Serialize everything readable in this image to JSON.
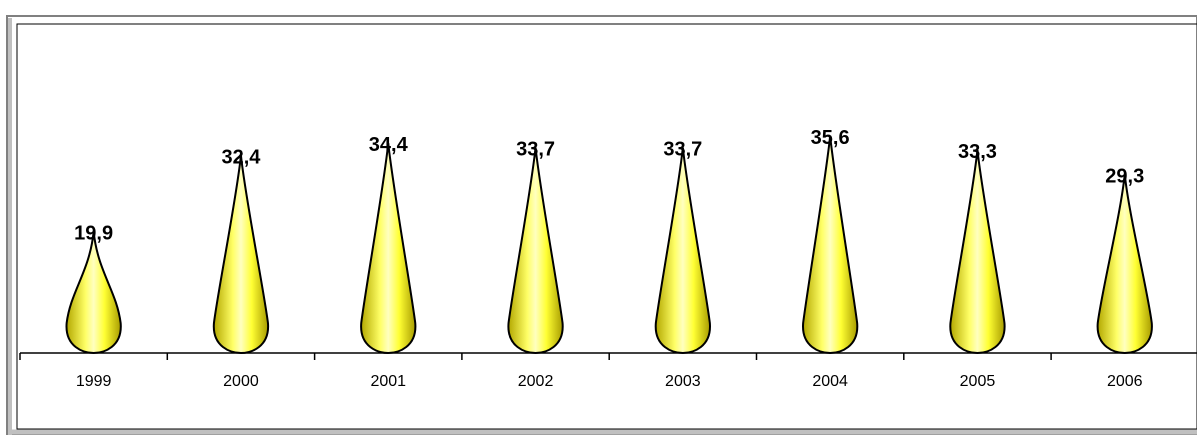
{
  "chart_data": {
    "type": "bar",
    "mark_shape": "teardrop",
    "categories": [
      "1999",
      "2000",
      "2001",
      "2002",
      "2003",
      "2004",
      "2005",
      "2006"
    ],
    "values": [
      19.9,
      32.4,
      34.4,
      33.7,
      33.7,
      35.6,
      33.3,
      29.3
    ],
    "value_labels": [
      "19,9",
      "32,4",
      "34,4",
      "33,7",
      "33,7",
      "35,6",
      "33,3",
      "29,3"
    ],
    "title": "",
    "xlabel": "",
    "ylabel": "",
    "ylim": [
      0,
      50
    ],
    "grid": false,
    "legend": "none",
    "colors": {
      "fill_light": "#ffffc0",
      "fill": "#ffff33",
      "fill_dark": "#b3a800",
      "outline": "#000000",
      "frame": "#7f7f7f"
    }
  }
}
